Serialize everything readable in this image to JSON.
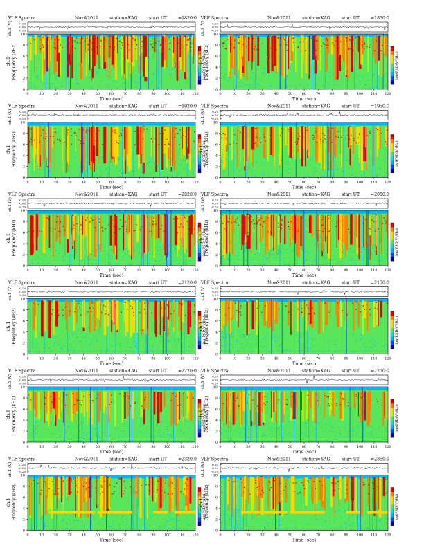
{
  "page": {
    "title": "VLF Spectra",
    "date": "Nov&2011",
    "station": "station=KAG",
    "start_label": "start  UT"
  },
  "labels": {
    "wave_ylabel": "ch.1 (V)",
    "spec_ylabel_top": "ch.1",
    "spec_ylabel_bottom": "Frequency  (kHz)",
    "xlabel": "Time  (sec)",
    "colorbar_label": "log(PSD(V²/Hz))"
  },
  "colormap": [
    "#0000c8",
    "#0050ff",
    "#00b4ff",
    "#00e6c8",
    "#5ae65a",
    "#c8f000",
    "#ffd700",
    "#ff8000",
    "#e60000"
  ],
  "chart_data": [
    {
      "type": "heatmap",
      "start_ut": "=1820:0",
      "xlim": [
        0,
        120
      ],
      "ylim": [
        0,
        10
      ],
      "xticks": [
        0,
        10,
        20,
        30,
        40,
        50,
        60,
        70,
        80,
        90,
        100,
        110,
        120
      ],
      "yticks": [
        0,
        2,
        4,
        6,
        8,
        10
      ],
      "wave_yticks": [
        "0.20",
        "0.00",
        "-0.20"
      ],
      "activity": 0.9,
      "chorus_band": [
        7,
        9.5
      ],
      "lower_band": null
    },
    {
      "type": "heatmap",
      "start_ut": "=1850:0",
      "xlim": [
        0,
        120
      ],
      "ylim": [
        0,
        10
      ],
      "xticks": [
        0,
        10,
        20,
        30,
        40,
        50,
        60,
        70,
        80,
        90,
        100,
        110,
        120
      ],
      "yticks": [
        0,
        2,
        4,
        6,
        8,
        10
      ],
      "wave_yticks": [
        "0.20",
        "0.00",
        "-0.20"
      ],
      "activity": 0.85,
      "chorus_band": [
        7,
        9.5
      ],
      "lower_band": null
    },
    {
      "type": "heatmap",
      "start_ut": "=1920:0",
      "xlim": [
        0,
        120
      ],
      "ylim": [
        0,
        10
      ],
      "xticks": [
        0,
        10,
        20,
        30,
        40,
        50,
        60,
        70,
        80,
        90,
        100,
        110,
        120
      ],
      "yticks": [
        0,
        2,
        4,
        6,
        8,
        10
      ],
      "wave_yticks": [
        "0.20",
        "0.00",
        "-0.20"
      ],
      "activity": 0.85,
      "chorus_band": [
        6,
        9
      ],
      "lower_band": null
    },
    {
      "type": "heatmap",
      "start_ut": "=1950:0",
      "xlim": [
        0,
        120
      ],
      "ylim": [
        0,
        10
      ],
      "xticks": [
        0,
        10,
        20,
        30,
        40,
        50,
        60,
        70,
        80,
        90,
        100,
        110,
        120
      ],
      "yticks": [
        0,
        2,
        4,
        6,
        8,
        10
      ],
      "wave_yticks": [
        "0.20",
        "0.00",
        "-0.20"
      ],
      "activity": 0.7,
      "chorus_band": [
        6,
        9
      ],
      "lower_band": null
    },
    {
      "type": "heatmap",
      "start_ut": "=2020:0",
      "xlim": [
        0,
        120
      ],
      "ylim": [
        0,
        10
      ],
      "xticks": [
        0,
        10,
        20,
        30,
        40,
        50,
        60,
        70,
        80,
        90,
        100,
        110,
        120
      ],
      "yticks": [
        0,
        2,
        4,
        6,
        8,
        10
      ],
      "wave_yticks": [
        "0.20",
        "0.00",
        "-0.20"
      ],
      "activity": 0.75,
      "chorus_band": [
        6,
        9
      ],
      "lower_band": null
    },
    {
      "type": "heatmap",
      "start_ut": "=2050:0",
      "xlim": [
        0,
        120
      ],
      "ylim": [
        0,
        10
      ],
      "xticks": [
        0,
        10,
        20,
        30,
        40,
        50,
        60,
        70,
        80,
        90,
        100,
        110,
        120
      ],
      "yticks": [
        0,
        2,
        4,
        6,
        8,
        10
      ],
      "wave_yticks": [
        "0.20",
        "0.00",
        "-0.20"
      ],
      "activity": 0.75,
      "chorus_band": [
        6,
        9
      ],
      "lower_band": null
    },
    {
      "type": "heatmap",
      "start_ut": "=2120:0",
      "xlim": [
        0,
        120
      ],
      "ylim": [
        0,
        10
      ],
      "xticks": [
        0,
        10,
        20,
        30,
        40,
        50,
        60,
        70,
        80,
        90,
        100,
        110,
        120
      ],
      "yticks": [
        0,
        2,
        4,
        6,
        8,
        10
      ],
      "wave_yticks": [
        "0.20",
        "0.00",
        "-0.20"
      ],
      "activity": 0.55,
      "chorus_band": [
        7,
        9.5
      ],
      "lower_band": null
    },
    {
      "type": "heatmap",
      "start_ut": "=2150:0",
      "xlim": [
        0,
        120
      ],
      "ylim": [
        0,
        10
      ],
      "xticks": [
        0,
        10,
        20,
        30,
        40,
        50,
        60,
        70,
        80,
        90,
        100,
        110,
        120
      ],
      "yticks": [
        0,
        2,
        4,
        6,
        8,
        10
      ],
      "wave_yticks": [
        "0.20",
        "0.00",
        "-0.20"
      ],
      "activity": 0.4,
      "chorus_band": [
        7,
        9.5
      ],
      "lower_band": null
    },
    {
      "type": "heatmap",
      "start_ut": "=2220:0",
      "xlim": [
        0,
        120
      ],
      "ylim": [
        0,
        10
      ],
      "xticks": [
        0,
        10,
        20,
        30,
        40,
        50,
        60,
        70,
        80,
        90,
        100,
        110,
        120
      ],
      "yticks": [
        0,
        2,
        4,
        6,
        8,
        10
      ],
      "wave_yticks": [
        "0.20",
        "0.00",
        "-0.20"
      ],
      "activity": 0.45,
      "chorus_band": [
        6.5,
        9
      ],
      "lower_band": null
    },
    {
      "type": "heatmap",
      "start_ut": "=2250:0",
      "xlim": [
        0,
        120
      ],
      "ylim": [
        0,
        10
      ],
      "xticks": [
        0,
        10,
        20,
        30,
        40,
        50,
        60,
        70,
        80,
        90,
        100,
        110,
        120
      ],
      "yticks": [
        0,
        2,
        4,
        6,
        8,
        10
      ],
      "wave_yticks": [
        "0.20",
        "0.00",
        "-0.20"
      ],
      "activity": 0.45,
      "chorus_band": [
        6.5,
        9
      ],
      "lower_band": null
    },
    {
      "type": "heatmap",
      "start_ut": "=2320:0",
      "xlim": [
        0,
        120
      ],
      "ylim": [
        0,
        10
      ],
      "xticks": [
        0,
        10,
        20,
        30,
        40,
        50,
        60,
        70,
        80,
        90,
        100,
        110,
        120
      ],
      "yticks": [
        0,
        2,
        4,
        6,
        8,
        10
      ],
      "wave_yticks": [
        "0.20",
        "0.00",
        "-0.20"
      ],
      "activity": 0.6,
      "chorus_band": [
        6.5,
        9.5
      ],
      "lower_band": [
        3,
        3.5
      ]
    },
    {
      "type": "heatmap",
      "start_ut": "=2350:0",
      "xlim": [
        0,
        120
      ],
      "ylim": [
        0,
        10
      ],
      "xticks": [
        0,
        10,
        20,
        30,
        40,
        50,
        60,
        70,
        80,
        90,
        100,
        110,
        120
      ],
      "yticks": [
        0,
        2,
        4,
        6,
        8,
        10
      ],
      "wave_yticks": [
        "0.20",
        "0.00",
        "-0.20"
      ],
      "activity": 0.55,
      "chorus_band": [
        6.5,
        9.5
      ],
      "lower_band": [
        3,
        3.5
      ]
    }
  ]
}
